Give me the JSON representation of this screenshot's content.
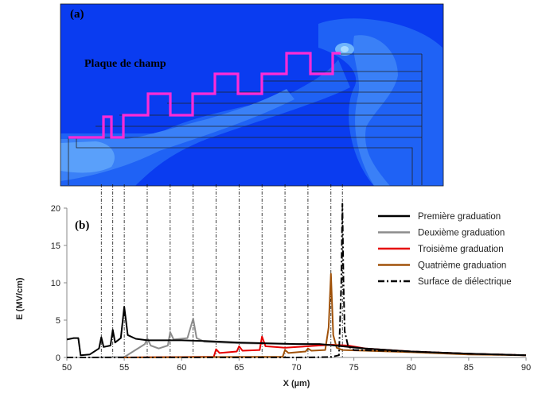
{
  "panel_a": {
    "label": "(a)",
    "plate_label": "Plaque de champ"
  },
  "panel_b": {
    "label": "(b)"
  },
  "chart_data": {
    "type": "line",
    "xlabel": "X (µm)",
    "ylabel": "E (MV/cm)",
    "xlim": [
      50,
      90
    ],
    "ylim": [
      0,
      20
    ],
    "xticks": [
      50,
      55,
      60,
      65,
      70,
      75,
      80,
      85,
      90
    ],
    "yticks": [
      0,
      5,
      10,
      15,
      20
    ],
    "grid": false,
    "legend_position": "top-right",
    "guide_lines_x": [
      53,
      54,
      55,
      57,
      59,
      61,
      63,
      65,
      67,
      69,
      71,
      73,
      74
    ],
    "series": [
      {
        "name": "Première graduation",
        "color": "#000000",
        "style": "solid",
        "points": [
          [
            50,
            2.4
          ],
          [
            50.6,
            2.6
          ],
          [
            51,
            2.6
          ],
          [
            51.2,
            0.3
          ],
          [
            52,
            0.4
          ],
          [
            52.8,
            1.2
          ],
          [
            53,
            2.7
          ],
          [
            53.2,
            1.4
          ],
          [
            53.8,
            1.6
          ],
          [
            54,
            3.7
          ],
          [
            54.2,
            2.0
          ],
          [
            54.7,
            2.6
          ],
          [
            55,
            6.8
          ],
          [
            55.3,
            3.0
          ],
          [
            56,
            2.5
          ],
          [
            57,
            2.3
          ],
          [
            60,
            2.3
          ],
          [
            62,
            2.2
          ],
          [
            65,
            2.0
          ],
          [
            70,
            1.8
          ],
          [
            72,
            1.8
          ],
          [
            74,
            1.5
          ],
          [
            76,
            1.2
          ],
          [
            78,
            1.0
          ],
          [
            80,
            0.8
          ],
          [
            85,
            0.5
          ],
          [
            90,
            0.3
          ]
        ]
      },
      {
        "name": "Deuxième graduation",
        "color": "#8c8c8c",
        "style": "solid",
        "points": [
          [
            52,
            0.0
          ],
          [
            55,
            0.05
          ],
          [
            56.8,
            1.8
          ],
          [
            57,
            2.6
          ],
          [
            57.3,
            1.6
          ],
          [
            58,
            1.2
          ],
          [
            58.8,
            1.6
          ],
          [
            59,
            3.4
          ],
          [
            59.3,
            2.4
          ],
          [
            60.5,
            2.6
          ],
          [
            61,
            5.2
          ],
          [
            61.3,
            2.6
          ],
          [
            62,
            2.1
          ],
          [
            65,
            1.9
          ],
          [
            70,
            1.8
          ],
          [
            73,
            1.7
          ],
          [
            75,
            1.3
          ],
          [
            80,
            0.8
          ],
          [
            85,
            0.5
          ],
          [
            90,
            0.3
          ]
        ]
      },
      {
        "name": "Troisième graduation",
        "color": "#e60000",
        "style": "solid",
        "points": [
          [
            55,
            0.0
          ],
          [
            62.8,
            0.1
          ],
          [
            63,
            1.1
          ],
          [
            63.3,
            0.6
          ],
          [
            64.8,
            0.8
          ],
          [
            65,
            1.5
          ],
          [
            65.3,
            0.9
          ],
          [
            66.8,
            1.0
          ],
          [
            67,
            2.8
          ],
          [
            67.3,
            1.5
          ],
          [
            69,
            1.3
          ],
          [
            71,
            1.5
          ],
          [
            73,
            1.7
          ],
          [
            74.5,
            1.6
          ],
          [
            76,
            1.2
          ],
          [
            80,
            0.8
          ],
          [
            85,
            0.5
          ],
          [
            90,
            0.3
          ]
        ]
      },
      {
        "name": "Quatrième graduation",
        "color": "#a0520a",
        "style": "solid",
        "points": [
          [
            55,
            0.0
          ],
          [
            68.8,
            0.1
          ],
          [
            69,
            1.0
          ],
          [
            69.3,
            0.6
          ],
          [
            70.8,
            0.8
          ],
          [
            71,
            1.2
          ],
          [
            71.3,
            0.9
          ],
          [
            72.5,
            1.0
          ],
          [
            72.8,
            4.0
          ],
          [
            73,
            11.2
          ],
          [
            73.2,
            3.0
          ],
          [
            73.5,
            1.3
          ],
          [
            74,
            1.0
          ],
          [
            76,
            0.9
          ],
          [
            80,
            0.7
          ],
          [
            85,
            0.4
          ],
          [
            90,
            0.3
          ]
        ]
      },
      {
        "name": "Surface de diélectrique",
        "color": "#000000",
        "style": "dashdot",
        "points": [
          [
            50,
            0.0
          ],
          [
            70,
            0.0
          ],
          [
            73,
            0.05
          ],
          [
            73.7,
            0.3
          ],
          [
            73.9,
            10.0
          ],
          [
            74.0,
            20.6
          ],
          [
            74.1,
            10.0
          ],
          [
            74.2,
            3.5
          ],
          [
            74.5,
            1.5
          ],
          [
            75,
            1.0
          ],
          [
            80,
            0.8
          ],
          [
            85,
            0.5
          ],
          [
            90,
            0.3
          ]
        ]
      }
    ]
  }
}
